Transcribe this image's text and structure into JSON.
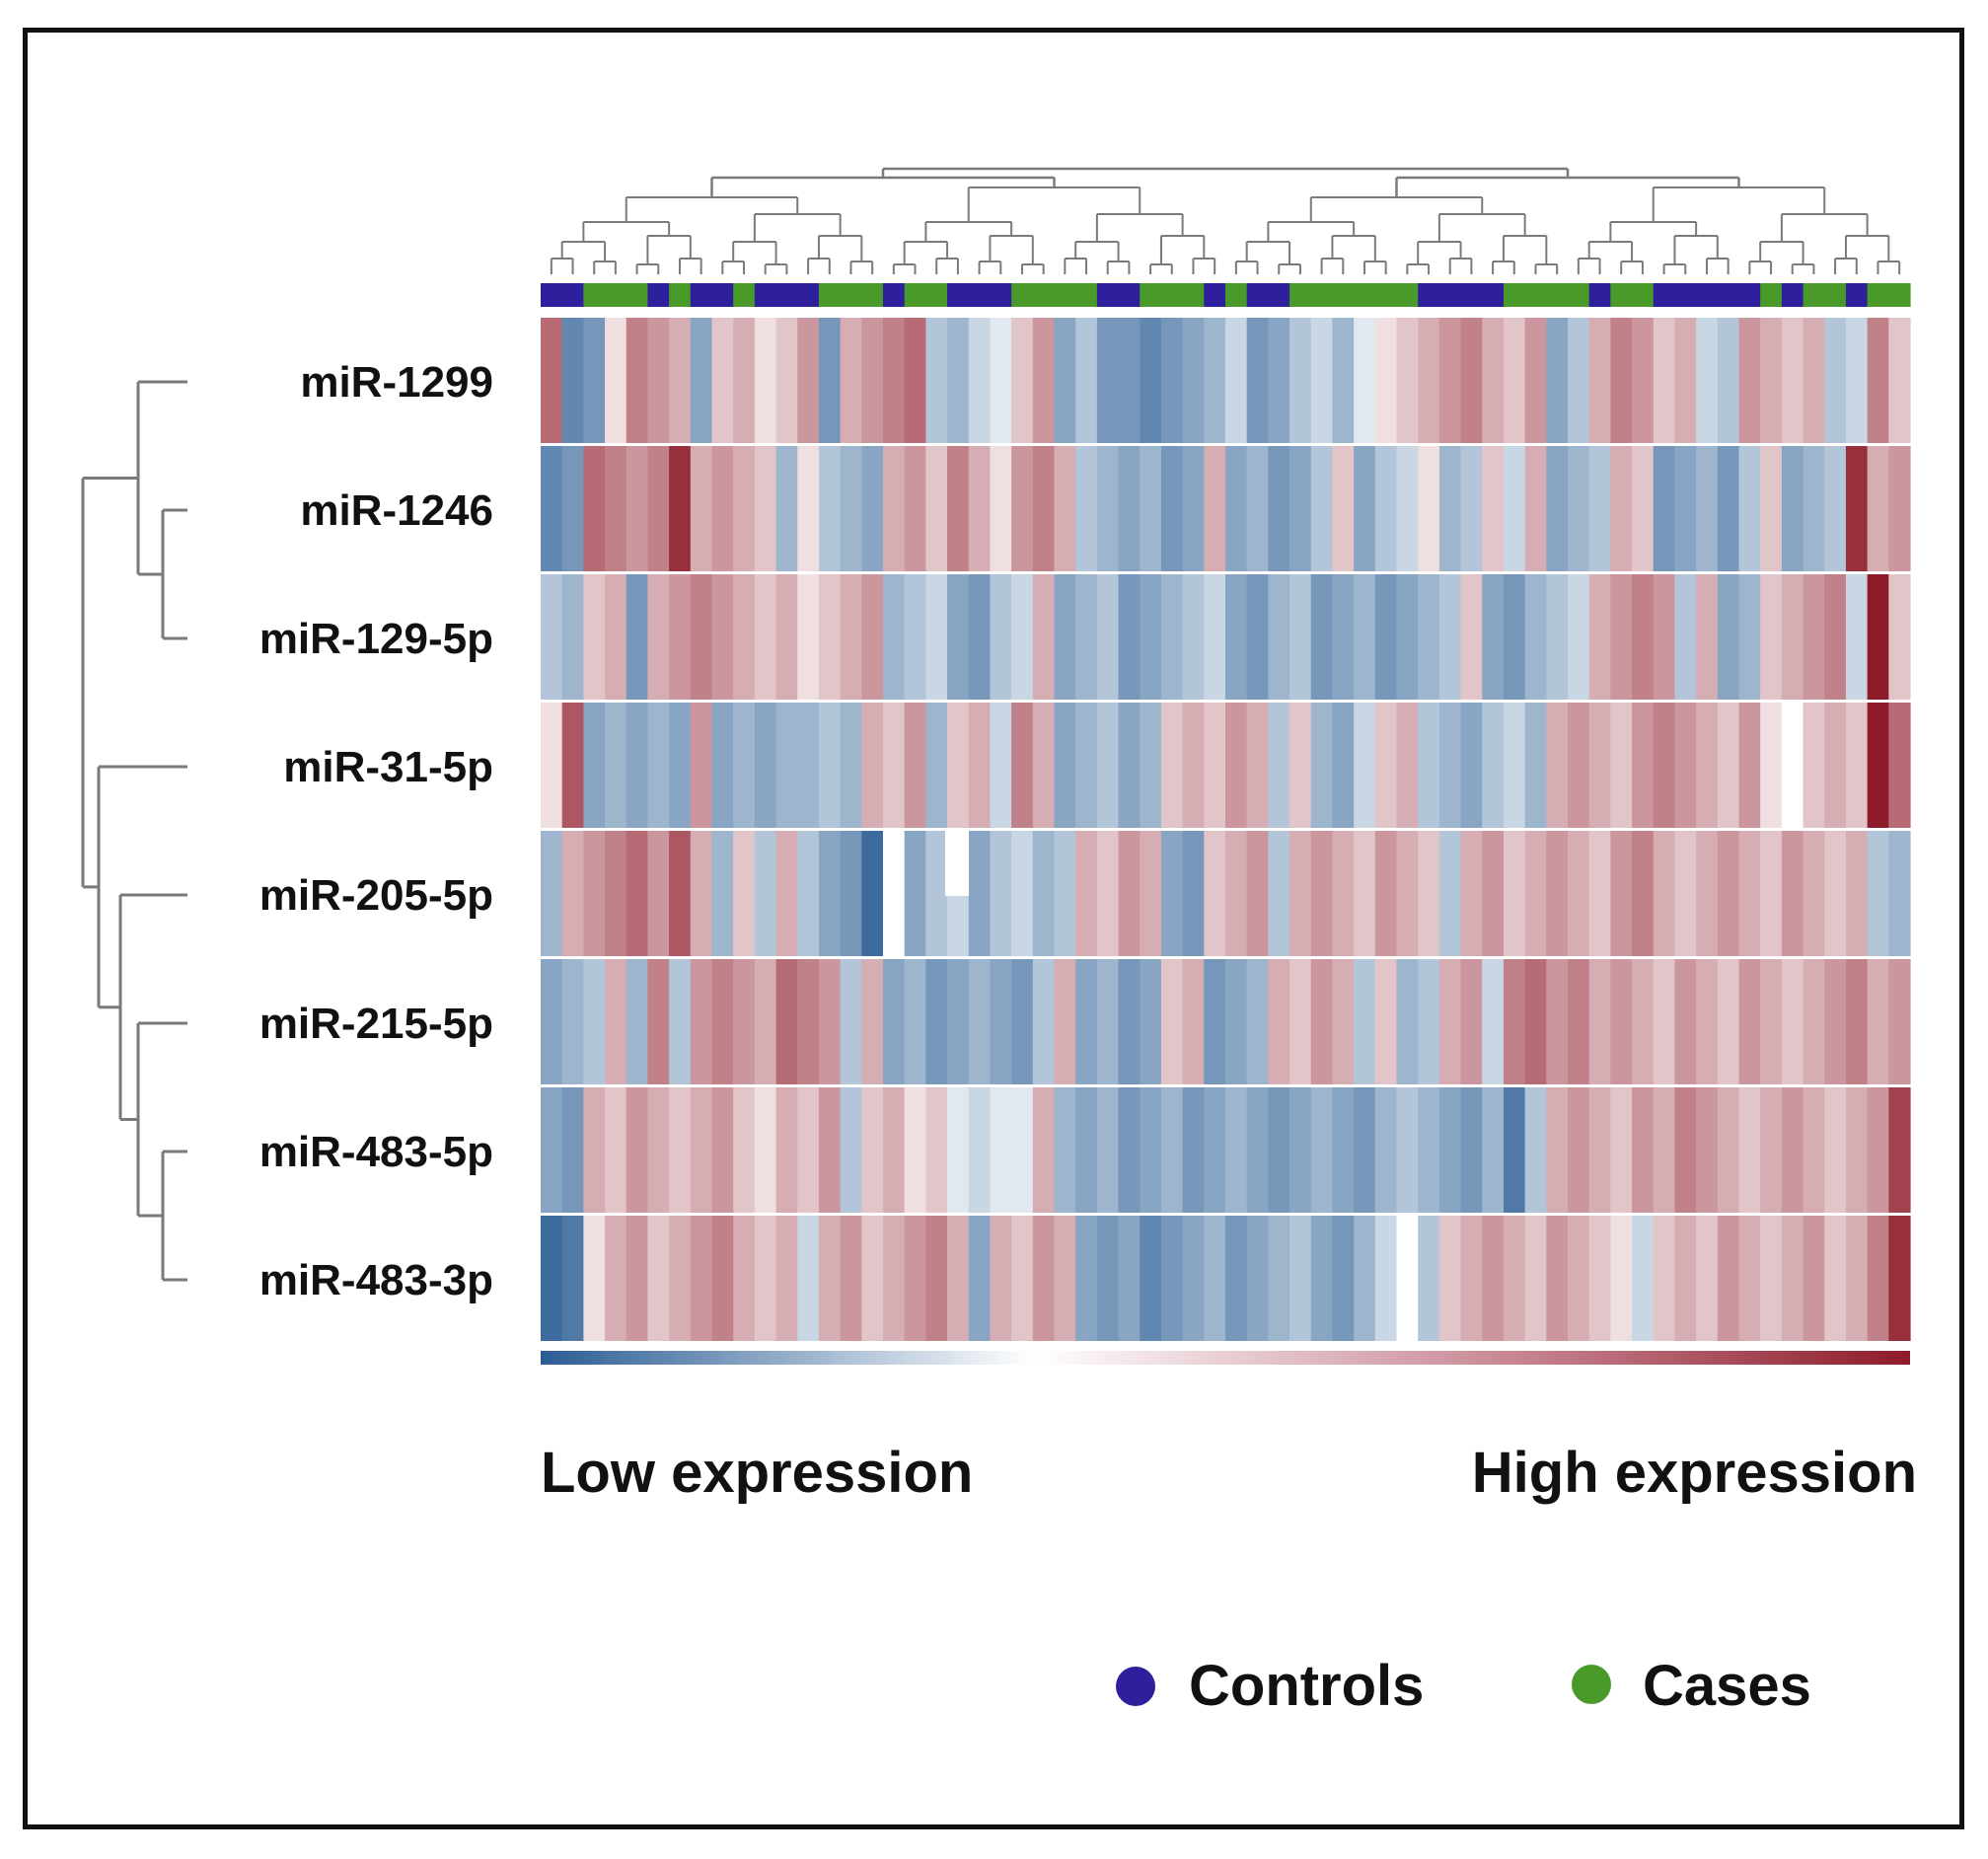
{
  "chart_data": {
    "type": "heatmap",
    "title": "",
    "rows": [
      "miR-1299",
      "miR-1246",
      "miR-129-5p",
      "miR-31-5p",
      "miR-205-5p",
      "miR-215-5p",
      "miR-483-5p",
      "miR-483-3p"
    ],
    "n_samples": 64,
    "value_range": [
      -1,
      1
    ],
    "color_scale": {
      "low_label": "Low expression",
      "high_label": "High expression",
      "low_color": "#2b5d94",
      "mid_color": "#ffffff",
      "high_color": "#8e1b2a"
    },
    "groups": {
      "legend": [
        {
          "name": "Controls",
          "color": "#2e1f9c"
        },
        {
          "name": "Cases",
          "color": "#4a9a2a"
        }
      ],
      "sequence": "CCaaaCaCCaCCCaaaCaaCCCaaaaCCaaaCaCCaaaaaaCCCCaaaaCaaCCCCCaCaaCaa"
    },
    "values": [
      [
        0.6,
        -0.7,
        -0.6,
        0.1,
        0.5,
        0.4,
        0.3,
        -0.5,
        0.2,
        0.3,
        0.1,
        0.2,
        0.4,
        -0.6,
        0.3,
        0.4,
        0.5,
        0.6,
        -0.3,
        -0.4,
        -0.2,
        -0.1,
        0.2,
        0.4,
        -0.5,
        -0.3,
        -0.6,
        -0.6,
        -0.7,
        -0.6,
        -0.5,
        -0.4,
        -0.2,
        -0.6,
        -0.5,
        -0.3,
        -0.2,
        -0.4,
        -0.1,
        0.1,
        0.2,
        0.3,
        0.4,
        0.5,
        0.3,
        0.2,
        0.4,
        -0.5,
        -0.3,
        0.3,
        0.5,
        0.4,
        0.2,
        0.3,
        -0.2,
        -0.3,
        0.4,
        0.3,
        0.2,
        0.3,
        -0.3,
        -0.2,
        0.5,
        0.2
      ],
      [
        -0.7,
        -0.6,
        0.6,
        0.5,
        0.4,
        0.5,
        0.9,
        0.3,
        0.4,
        0.3,
        0.2,
        -0.4,
        0.1,
        -0.3,
        -0.4,
        -0.5,
        0.3,
        0.4,
        0.2,
        0.5,
        0.3,
        0.1,
        0.4,
        0.5,
        0.3,
        -0.3,
        -0.4,
        -0.5,
        -0.4,
        -0.6,
        -0.5,
        0.3,
        -0.5,
        -0.4,
        -0.6,
        -0.5,
        -0.3,
        0.2,
        -0.5,
        -0.3,
        -0.2,
        0.1,
        -0.4,
        -0.3,
        0.2,
        -0.2,
        0.3,
        -0.5,
        -0.4,
        -0.3,
        0.3,
        0.2,
        -0.6,
        -0.5,
        -0.4,
        -0.6,
        -0.3,
        0.2,
        -0.5,
        -0.4,
        -0.3,
        0.9,
        0.3,
        0.4
      ],
      [
        -0.3,
        -0.4,
        0.2,
        0.3,
        -0.6,
        0.3,
        0.4,
        0.5,
        0.4,
        0.3,
        0.2,
        0.3,
        0.1,
        0.2,
        0.3,
        0.4,
        -0.4,
        -0.3,
        -0.2,
        -0.5,
        -0.6,
        -0.3,
        -0.2,
        0.3,
        -0.5,
        -0.4,
        -0.3,
        -0.6,
        -0.5,
        -0.4,
        -0.3,
        -0.2,
        -0.5,
        -0.6,
        -0.4,
        -0.3,
        -0.6,
        -0.5,
        -0.4,
        -0.6,
        -0.5,
        -0.4,
        -0.3,
        0.2,
        -0.5,
        -0.6,
        -0.4,
        -0.3,
        -0.2,
        0.3,
        0.4,
        0.5,
        0.4,
        -0.3,
        0.3,
        -0.5,
        -0.4,
        0.2,
        0.3,
        0.4,
        0.5,
        -0.2,
        1.0,
        0.2
      ],
      [
        0.1,
        0.7,
        -0.5,
        -0.4,
        -0.5,
        -0.4,
        -0.5,
        0.4,
        -0.5,
        -0.4,
        -0.5,
        -0.4,
        -0.4,
        -0.3,
        -0.4,
        0.3,
        0.2,
        0.4,
        -0.4,
        0.2,
        0.3,
        -0.2,
        0.5,
        0.3,
        -0.5,
        -0.4,
        -0.3,
        -0.5,
        -0.4,
        0.2,
        0.3,
        0.2,
        0.4,
        0.3,
        -0.3,
        0.2,
        -0.4,
        -0.5,
        -0.2,
        0.2,
        0.3,
        -0.3,
        -0.4,
        -0.5,
        -0.3,
        -0.2,
        -0.4,
        0.3,
        0.4,
        0.3,
        0.2,
        0.4,
        0.5,
        0.4,
        0.3,
        0.2,
        0.4,
        0.1,
        0.0,
        0.2,
        0.3,
        0.2,
        1.0,
        0.6
      ],
      [
        -0.4,
        0.3,
        0.4,
        0.5,
        0.6,
        0.4,
        0.7,
        0.3,
        -0.4,
        0.2,
        -0.3,
        0.3,
        -0.3,
        -0.5,
        -0.6,
        -0.9,
        0.0,
        -0.5,
        -0.3,
        -0.2,
        -0.5,
        -0.3,
        -0.2,
        -0.4,
        -0.3,
        0.3,
        0.2,
        0.4,
        0.3,
        -0.5,
        -0.6,
        0.2,
        0.3,
        0.4,
        -0.3,
        0.3,
        0.4,
        0.3,
        0.2,
        0.4,
        0.3,
        0.2,
        -0.3,
        0.3,
        0.4,
        0.2,
        0.3,
        0.4,
        0.3,
        0.2,
        0.4,
        0.5,
        0.3,
        0.2,
        0.3,
        0.4,
        0.3,
        0.2,
        0.4,
        0.3,
        0.2,
        0.3,
        -0.3,
        -0.4
      ],
      [
        -0.5,
        -0.4,
        -0.3,
        0.3,
        -0.4,
        0.5,
        -0.3,
        0.4,
        0.5,
        0.4,
        0.3,
        0.6,
        0.5,
        0.4,
        -0.3,
        0.3,
        -0.5,
        -0.4,
        -0.6,
        -0.5,
        -0.4,
        -0.5,
        -0.6,
        -0.3,
        0.3,
        -0.5,
        -0.4,
        -0.6,
        -0.5,
        0.2,
        0.3,
        -0.6,
        -0.5,
        -0.4,
        0.3,
        0.2,
        0.4,
        0.3,
        -0.3,
        0.2,
        -0.4,
        -0.3,
        0.3,
        0.4,
        -0.2,
        0.5,
        0.6,
        0.4,
        0.5,
        0.3,
        0.4,
        0.3,
        0.2,
        0.4,
        0.3,
        0.2,
        0.4,
        0.3,
        0.2,
        0.3,
        0.4,
        0.5,
        0.3,
        0.4
      ],
      [
        -0.5,
        -0.6,
        0.3,
        0.2,
        0.4,
        0.3,
        0.2,
        0.3,
        0.4,
        0.2,
        0.1,
        0.3,
        0.2,
        0.4,
        -0.3,
        0.2,
        0.3,
        0.1,
        0.2,
        -0.1,
        -0.2,
        -0.1,
        -0.1,
        0.3,
        -0.4,
        -0.5,
        -0.4,
        -0.6,
        -0.5,
        -0.4,
        -0.6,
        -0.5,
        -0.4,
        -0.5,
        -0.6,
        -0.5,
        -0.4,
        -0.5,
        -0.6,
        -0.4,
        -0.3,
        -0.4,
        -0.5,
        -0.6,
        -0.4,
        -0.8,
        -0.3,
        0.3,
        0.4,
        0.3,
        0.2,
        0.4,
        0.3,
        0.5,
        0.4,
        0.3,
        0.2,
        0.3,
        0.4,
        0.3,
        0.2,
        0.3,
        0.4,
        0.8
      ],
      [
        -0.9,
        -0.8,
        0.1,
        0.3,
        0.4,
        0.2,
        0.3,
        0.4,
        0.5,
        0.3,
        0.2,
        0.3,
        -0.2,
        0.3,
        0.4,
        0.2,
        0.3,
        0.4,
        0.5,
        0.3,
        -0.5,
        0.3,
        0.2,
        0.4,
        0.3,
        -0.5,
        -0.6,
        -0.5,
        -0.7,
        -0.6,
        -0.5,
        -0.4,
        -0.6,
        -0.5,
        -0.4,
        -0.3,
        -0.5,
        -0.6,
        -0.4,
        -0.2,
        0.0,
        -0.3,
        0.2,
        0.3,
        0.4,
        0.3,
        0.2,
        0.4,
        0.3,
        0.2,
        0.1,
        -0.2,
        0.2,
        0.3,
        0.2,
        0.4,
        0.3,
        0.2,
        0.3,
        0.4,
        0.2,
        0.3,
        0.5,
        0.9
      ]
    ]
  }
}
